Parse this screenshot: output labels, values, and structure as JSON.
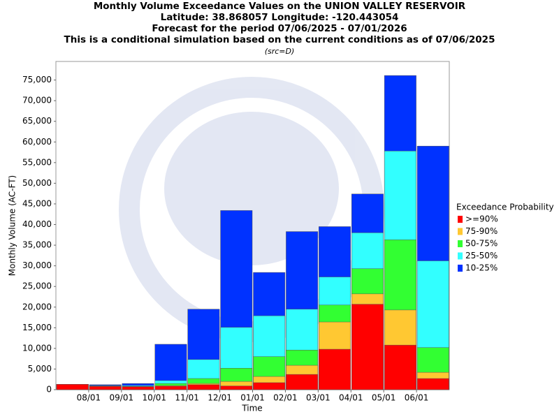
{
  "chart_data": {
    "type": "overlapping_bar",
    "title_lines": [
      "Monthly Volume Exceedance Values on the UNION VALLEY RESERVOIR",
      "Latitude: 38.868057 Longitude: -120.443054",
      "Forecast for the period 07/06/2025 - 07/01/2026",
      "This is a conditional simulation based on the current conditions as of 07/06/2025"
    ],
    "subtitle": "(src=D)",
    "x_label": "Time",
    "y_label": "Monthly Volume (AC-FT)",
    "legend_title": "Exceedance Probability",
    "categories": [
      null,
      "08/01",
      "09/01",
      "10/01",
      "11/01",
      "12/01",
      "01/01",
      "02/01",
      "03/01",
      "04/01",
      "05/01",
      "06/01"
    ],
    "series": [
      {
        "name": ">=90%",
        "color": "#ff0000",
        "values": [
          1300,
          800,
          700,
          850,
          1200,
          900,
          1700,
          3700,
          9800,
          20700,
          10800,
          2700
        ]
      },
      {
        "name": "75-90%",
        "color": "#ffc832",
        "values": [
          1300,
          850,
          750,
          1000,
          1500,
          2000,
          3200,
          5900,
          16400,
          23200,
          19300,
          4200
        ]
      },
      {
        "name": "50-75%",
        "color": "#32ff32",
        "values": [
          1300,
          900,
          800,
          1500,
          2700,
          5200,
          8000,
          9600,
          20500,
          29300,
          36300,
          10200
        ]
      },
      {
        "name": "25-50%",
        "color": "#32ffff",
        "values": [
          1300,
          1000,
          1000,
          2200,
          7300,
          15100,
          17900,
          19500,
          27300,
          38000,
          57800,
          31200
        ]
      },
      {
        "name": "10-25%",
        "color": "#0032ff",
        "values": [
          1300,
          1200,
          1500,
          11000,
          19500,
          43400,
          28400,
          38300,
          39500,
          47400,
          76100,
          59000
        ]
      }
    ],
    "ylim": [
      0,
      79500
    ],
    "yticks": [
      0,
      {
        "value": 5000,
        "label": "5,000"
      },
      {
        "value": 10000,
        "label": "10,000"
      },
      {
        "value": 15000,
        "label": "15,000"
      },
      {
        "value": 20000,
        "label": "20,000"
      },
      {
        "value": 25000,
        "label": "25,000"
      },
      {
        "value": 30000,
        "label": "30,000"
      },
      {
        "value": 35000,
        "label": "35,000"
      },
      {
        "value": 40000,
        "label": "40,000"
      },
      {
        "value": 45000,
        "label": "45,000"
      },
      {
        "value": 50000,
        "label": "50,000"
      },
      {
        "value": 55000,
        "label": "55,000"
      },
      {
        "value": 60000,
        "label": "60,000"
      },
      {
        "value": 65000,
        "label": "65,000"
      },
      {
        "value": 70000,
        "label": "70,000"
      },
      {
        "value": 75000,
        "label": "75,000"
      }
    ],
    "legend_position": "right"
  }
}
